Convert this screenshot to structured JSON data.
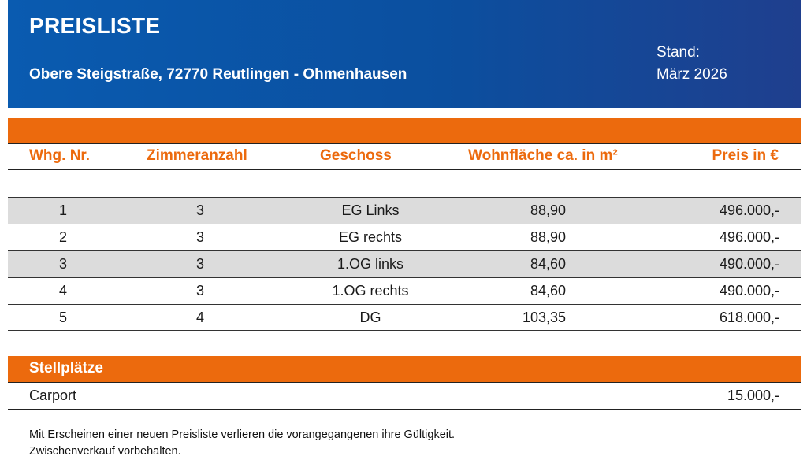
{
  "header": {
    "title": "PREISLISTE",
    "address": "Obere Steigstraße, 72770 Reutlingen - Ohmenhausen",
    "stand_label": "Stand:",
    "stand_value": "März 2026",
    "gradient_colors": [
      "#0a5bb0",
      "#1f3f8e"
    ]
  },
  "accent_color": "#ec6a0d",
  "table": {
    "headers": {
      "nr": "Whg. Nr.",
      "zimmer": "Zimmeranzahl",
      "geschoss": "Geschoss",
      "flaeche": "Wohnfläche ca. in m²",
      "preis": "Preis in €"
    },
    "rows": [
      {
        "nr": "1",
        "zimmer": "3",
        "geschoss": "EG Links",
        "flaeche": "88,90",
        "preis": "496.000,-"
      },
      {
        "nr": "2",
        "zimmer": "3",
        "geschoss": "EG rechts",
        "flaeche": "88,90",
        "preis": "496.000,-"
      },
      {
        "nr": "3",
        "zimmer": "3",
        "geschoss": "1.OG links",
        "flaeche": "84,60",
        "preis": "490.000,-"
      },
      {
        "nr": "4",
        "zimmer": "3",
        "geschoss": "1.OG rechts",
        "flaeche": "84,60",
        "preis": "490.000,-"
      },
      {
        "nr": "5",
        "zimmer": "4",
        "geschoss": "DG",
        "flaeche": "103,35",
        "preis": "618.000,-"
      }
    ]
  },
  "stellplaetze": {
    "title": "Stellplätze",
    "items": [
      {
        "label": "Carport",
        "preis": "15.000,-"
      }
    ]
  },
  "footer": {
    "line1": "Mit Erscheinen einer neuen Preisliste verlieren die vorangegangenen ihre Gültigkeit.",
    "line2": "Zwischenverkauf vorbehalten."
  }
}
